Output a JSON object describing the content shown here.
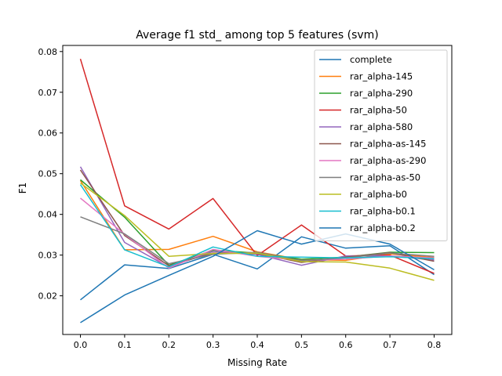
{
  "chart_data": {
    "type": "line",
    "title": "Average f1 std_ among top 5 features (svm)",
    "xlabel": "Missing Rate",
    "ylabel": "F1",
    "x": [
      0.0,
      0.1,
      0.2,
      0.3,
      0.4,
      0.5,
      0.6,
      0.7,
      0.8
    ],
    "xticks": [
      "0.0",
      "0.1",
      "0.2",
      "0.3",
      "0.4",
      "0.5",
      "0.6",
      "0.7",
      "0.8"
    ],
    "yticks": [
      "0.02",
      "0.03",
      "0.04",
      "0.05",
      "0.06",
      "0.07",
      "0.08"
    ],
    "xlim": [
      -0.04,
      0.84
    ],
    "ylim": [
      0.0105,
      0.0815
    ],
    "grid": false,
    "legend_position": "top-right",
    "series": [
      {
        "name": "complete",
        "color": "#1f77b4",
        "values": [
          0.019,
          0.0276,
          0.0267,
          0.0302,
          0.0266,
          0.0345,
          0.0317,
          0.0323,
          0.0252
        ]
      },
      {
        "name": "rar_alpha-145",
        "color": "#ff7f0e",
        "values": [
          0.0483,
          0.0313,
          0.0314,
          0.0346,
          0.0308,
          0.0289,
          0.0287,
          0.0303,
          0.0294
        ]
      },
      {
        "name": "rar_alpha-290",
        "color": "#2ca02c",
        "values": [
          0.0485,
          0.0393,
          0.0275,
          0.0312,
          0.0305,
          0.029,
          0.0295,
          0.0307,
          0.0306
        ]
      },
      {
        "name": "rar_alpha-50",
        "color": "#d62728",
        "values": [
          0.0782,
          0.0421,
          0.0364,
          0.0439,
          0.0299,
          0.0374,
          0.0298,
          0.03,
          0.0255
        ]
      },
      {
        "name": "rar_alpha-580",
        "color": "#9467bd",
        "values": [
          0.0517,
          0.0331,
          0.027,
          0.0309,
          0.0302,
          0.0275,
          0.0298,
          0.0298,
          0.0288
        ]
      },
      {
        "name": "rar_alpha-as-145",
        "color": "#8c564b",
        "values": [
          0.0509,
          0.0348,
          0.0274,
          0.0305,
          0.0304,
          0.0282,
          0.0295,
          0.0306,
          0.0285
        ]
      },
      {
        "name": "rar_alpha-as-290",
        "color": "#e377c2",
        "values": [
          0.044,
          0.0351,
          0.0268,
          0.0314,
          0.0297,
          0.0287,
          0.029,
          0.0298,
          0.0293
        ]
      },
      {
        "name": "rar_alpha-as-50",
        "color": "#7f7f7f",
        "values": [
          0.0394,
          0.0352,
          0.0279,
          0.0302,
          0.0307,
          0.0286,
          0.0293,
          0.0305,
          0.0297
        ]
      },
      {
        "name": "rar_alpha-b0",
        "color": "#bcbd22",
        "values": [
          0.0477,
          0.0397,
          0.0297,
          0.0304,
          0.0305,
          0.0284,
          0.0283,
          0.0268,
          0.0238
        ]
      },
      {
        "name": "rar_alpha-b0.1",
        "color": "#17becf",
        "values": [
          0.0473,
          0.0313,
          0.0271,
          0.032,
          0.0297,
          0.0295,
          0.0293,
          0.0296,
          0.0291
        ]
      },
      {
        "name": "rar_alpha-b0.2",
        "color": "#1f77b4",
        "values": [
          0.0134,
          0.0202,
          0.025,
          0.0297,
          0.036,
          0.0327,
          0.0352,
          0.0327,
          0.0264
        ]
      }
    ]
  }
}
